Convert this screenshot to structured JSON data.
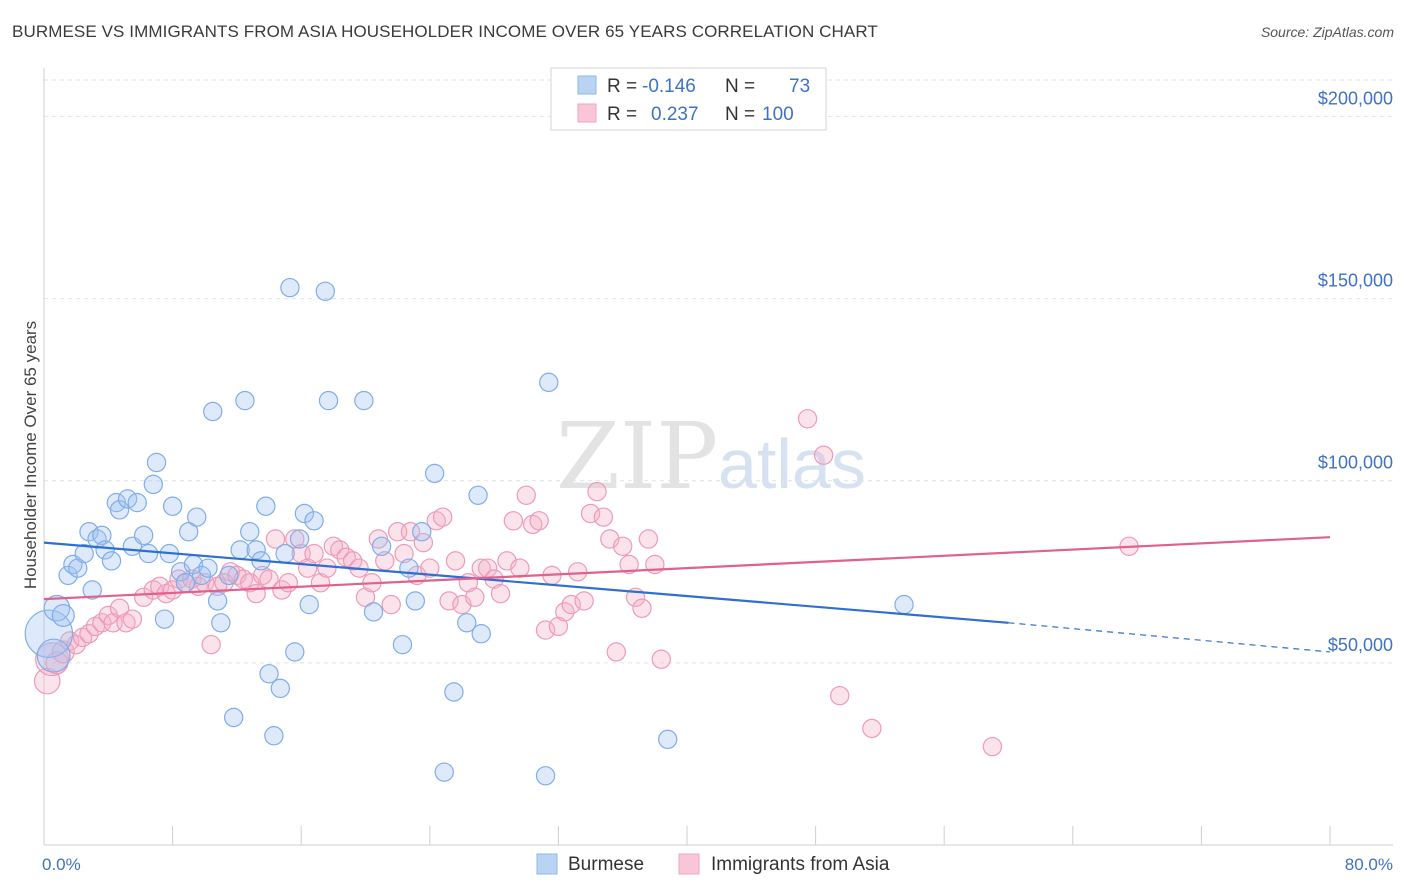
{
  "header": {
    "title": "BURMESE VS IMMIGRANTS FROM ASIA HOUSEHOLDER INCOME OVER 65 YEARS CORRELATION CHART",
    "source": "Source: ZipAtlas.com"
  },
  "watermark": {
    "zip": "ZIP",
    "atlas": "atlas"
  },
  "legend": {
    "r_label": "R =",
    "n_label": "N =",
    "items": [
      {
        "series": "Burmese",
        "r": "-0.146",
        "n": "73"
      },
      {
        "series": "Immigrants from Asia",
        "r": "0.237",
        "n": "100"
      }
    ]
  },
  "chart_data": {
    "type": "scatter",
    "title": "BURMESE VS IMMIGRANTS FROM ASIA HOUSEHOLDER INCOME OVER 65 YEARS CORRELATION CHART",
    "xlabel": "",
    "ylabel": "Householder Income Over 65 years",
    "xlim": [
      0,
      80
    ],
    "ylim": [
      0,
      210000
    ],
    "x_tick_labels": [
      "0.0%",
      "80.0%"
    ],
    "y_ticks": [
      50000,
      100000,
      150000,
      200000
    ],
    "y_tick_labels": [
      "$50,000",
      "$100,000",
      "$150,000",
      "$200,000"
    ],
    "grid": true,
    "legend_position": "top-center",
    "colors": {
      "Burmese": "#8fb8e8",
      "Immigrants from Asia": "#f2a6c0",
      "burmese_line": "#2f6fd0",
      "asia_line": "#e0608e"
    },
    "series": [
      {
        "name": "Burmese",
        "trend": {
          "x0": 0,
          "y0": 83000,
          "x1": 60,
          "y1": 61000,
          "dash_to_x": 80,
          "dash_to_y": 53000
        },
        "points": [
          [
            0.3,
            58000,
            26
          ],
          [
            0.6,
            52000,
            18
          ],
          [
            0.8,
            65000,
            14
          ],
          [
            1.2,
            63000,
            12
          ],
          [
            1.5,
            74000,
            10
          ],
          [
            1.8,
            77000,
            10
          ],
          [
            2.1,
            76000,
            10
          ],
          [
            2.5,
            80000,
            10
          ],
          [
            2.8,
            86000,
            10
          ],
          [
            3.0,
            70000,
            10
          ],
          [
            3.3,
            84000,
            10
          ],
          [
            3.6,
            85000,
            10
          ],
          [
            3.8,
            81000,
            10
          ],
          [
            4.2,
            78000,
            10
          ],
          [
            4.5,
            94000,
            10
          ],
          [
            4.7,
            92000,
            10
          ],
          [
            5.2,
            95000,
            10
          ],
          [
            5.5,
            82000,
            10
          ],
          [
            5.8,
            94000,
            10
          ],
          [
            6.2,
            85000,
            10
          ],
          [
            6.5,
            80000,
            10
          ],
          [
            6.8,
            99000,
            10
          ],
          [
            7.0,
            105000,
            10
          ],
          [
            7.5,
            62000,
            10
          ],
          [
            7.8,
            80000,
            10
          ],
          [
            8.0,
            93000,
            10
          ],
          [
            8.5,
            75000,
            10
          ],
          [
            8.8,
            72000,
            10
          ],
          [
            9.0,
            86000,
            10
          ],
          [
            9.3,
            77000,
            10
          ],
          [
            9.5,
            90000,
            10
          ],
          [
            9.8,
            74000,
            10
          ],
          [
            10.2,
            76000,
            10
          ],
          [
            10.5,
            119000,
            10
          ],
          [
            10.8,
            67000,
            10
          ],
          [
            11.0,
            61000,
            10
          ],
          [
            11.5,
            74000,
            10
          ],
          [
            11.8,
            35000,
            10
          ],
          [
            12.2,
            81000,
            10
          ],
          [
            12.5,
            122000,
            10
          ],
          [
            12.8,
            86000,
            10
          ],
          [
            13.2,
            81000,
            10
          ],
          [
            13.5,
            78000,
            10
          ],
          [
            13.8,
            93000,
            10
          ],
          [
            14.0,
            47000,
            10
          ],
          [
            14.3,
            30000,
            10
          ],
          [
            14.7,
            43000,
            10
          ],
          [
            15.0,
            80000,
            10
          ],
          [
            15.3,
            153000,
            10
          ],
          [
            15.6,
            53000,
            10
          ],
          [
            15.9,
            84000,
            10
          ],
          [
            16.2,
            91000,
            10
          ],
          [
            16.5,
            66000,
            10
          ],
          [
            16.8,
            89000,
            10
          ],
          [
            17.5,
            152000,
            10
          ],
          [
            17.7,
            122000,
            10
          ],
          [
            19.9,
            122000,
            10
          ],
          [
            20.5,
            64000,
            10
          ],
          [
            21.0,
            82000,
            10
          ],
          [
            22.3,
            55000,
            10
          ],
          [
            22.7,
            76000,
            10
          ],
          [
            23.1,
            67000,
            10
          ],
          [
            23.5,
            86000,
            10
          ],
          [
            24.3,
            102000,
            10
          ],
          [
            25.5,
            42000,
            10
          ],
          [
            24.9,
            20000,
            10
          ],
          [
            26.3,
            61000,
            10
          ],
          [
            27.0,
            96000,
            10
          ],
          [
            27.2,
            58000,
            10
          ],
          [
            31.2,
            19000,
            10
          ],
          [
            31.4,
            127000,
            10
          ],
          [
            38.8,
            29000,
            10
          ],
          [
            53.5,
            66000,
            10
          ]
        ]
      },
      {
        "name": "Immigrants from Asia",
        "trend": {
          "x0": 0,
          "y0": 67500,
          "x1": 80,
          "y1": 84500
        },
        "points": [
          [
            0.2,
            45000,
            14
          ],
          [
            0.5,
            51000,
            18
          ],
          [
            0.8,
            50000,
            12
          ],
          [
            1.2,
            53000,
            12
          ],
          [
            1.6,
            56000,
            10
          ],
          [
            2.0,
            55000,
            10
          ],
          [
            2.4,
            57000,
            10
          ],
          [
            2.8,
            58000,
            10
          ],
          [
            3.2,
            60000,
            10
          ],
          [
            3.6,
            61000,
            10
          ],
          [
            4.0,
            63000,
            10
          ],
          [
            4.3,
            61000,
            10
          ],
          [
            4.7,
            65000,
            10
          ],
          [
            5.1,
            61000,
            10
          ],
          [
            5.5,
            62000,
            10
          ],
          [
            6.2,
            68000,
            10
          ],
          [
            6.8,
            70000,
            10
          ],
          [
            7.2,
            71000,
            10
          ],
          [
            7.6,
            69000,
            10
          ],
          [
            8.0,
            70000,
            10
          ],
          [
            8.4,
            73000,
            10
          ],
          [
            8.8,
            72000,
            10
          ],
          [
            9.2,
            73000,
            10
          ],
          [
            9.6,
            71000,
            10
          ],
          [
            10.0,
            72000,
            10
          ],
          [
            10.4,
            55000,
            10
          ],
          [
            10.8,
            71000,
            10
          ],
          [
            11.2,
            72000,
            10
          ],
          [
            11.6,
            75000,
            10
          ],
          [
            12.0,
            74000,
            10
          ],
          [
            12.4,
            73000,
            10
          ],
          [
            12.8,
            72000,
            10
          ],
          [
            13.2,
            69000,
            10
          ],
          [
            13.6,
            74000,
            10
          ],
          [
            14.0,
            73000,
            10
          ],
          [
            14.4,
            84000,
            10
          ],
          [
            14.8,
            70000,
            10
          ],
          [
            15.2,
            72000,
            10
          ],
          [
            15.6,
            84000,
            10
          ],
          [
            16.0,
            80000,
            10
          ],
          [
            16.4,
            76000,
            10
          ],
          [
            16.8,
            80000,
            10
          ],
          [
            17.2,
            72000,
            10
          ],
          [
            17.6,
            76000,
            10
          ],
          [
            18.0,
            82000,
            10
          ],
          [
            18.4,
            81000,
            10
          ],
          [
            18.8,
            79000,
            10
          ],
          [
            19.2,
            78000,
            10
          ],
          [
            19.6,
            76000,
            10
          ],
          [
            20.0,
            68000,
            10
          ],
          [
            20.4,
            72000,
            10
          ],
          [
            20.8,
            84000,
            10
          ],
          [
            21.2,
            78000,
            10
          ],
          [
            21.6,
            66000,
            10
          ],
          [
            22.0,
            86000,
            10
          ],
          [
            22.4,
            80000,
            10
          ],
          [
            22.8,
            86000,
            10
          ],
          [
            23.2,
            74000,
            10
          ],
          [
            23.6,
            83000,
            10
          ],
          [
            24.0,
            76000,
            10
          ],
          [
            24.4,
            89000,
            10
          ],
          [
            24.8,
            90000,
            10
          ],
          [
            25.2,
            67000,
            10
          ],
          [
            25.6,
            78000,
            10
          ],
          [
            26.0,
            66000,
            10
          ],
          [
            26.4,
            72000,
            10
          ],
          [
            26.8,
            68000,
            10
          ],
          [
            27.2,
            76000,
            10
          ],
          [
            27.6,
            76000,
            10
          ],
          [
            28.0,
            73000,
            10
          ],
          [
            28.4,
            69000,
            10
          ],
          [
            28.8,
            78000,
            10
          ],
          [
            29.2,
            89000,
            10
          ],
          [
            29.6,
            76000,
            10
          ],
          [
            30.0,
            96000,
            10
          ],
          [
            30.4,
            88000,
            10
          ],
          [
            30.8,
            89000,
            10
          ],
          [
            31.2,
            59000,
            10
          ],
          [
            31.6,
            74000,
            10
          ],
          [
            32.0,
            60000,
            10
          ],
          [
            32.4,
            64000,
            10
          ],
          [
            32.8,
            66000,
            10
          ],
          [
            33.2,
            75000,
            10
          ],
          [
            33.6,
            67000,
            10
          ],
          [
            34.0,
            91000,
            10
          ],
          [
            34.4,
            97000,
            10
          ],
          [
            34.8,
            90000,
            10
          ],
          [
            35.2,
            84000,
            10
          ],
          [
            35.6,
            53000,
            10
          ],
          [
            36.0,
            82000,
            10
          ],
          [
            36.4,
            77000,
            10
          ],
          [
            36.8,
            68000,
            10
          ],
          [
            37.2,
            65000,
            10
          ],
          [
            37.6,
            84000,
            10
          ],
          [
            38.0,
            77000,
            10
          ],
          [
            38.4,
            51000,
            10
          ],
          [
            47.5,
            117000,
            10
          ],
          [
            48.5,
            107000,
            10
          ],
          [
            49.5,
            41000,
            10
          ],
          [
            51.5,
            32000,
            10
          ],
          [
            59.0,
            27000,
            10
          ],
          [
            67.5,
            82000,
            10
          ]
        ]
      }
    ]
  }
}
